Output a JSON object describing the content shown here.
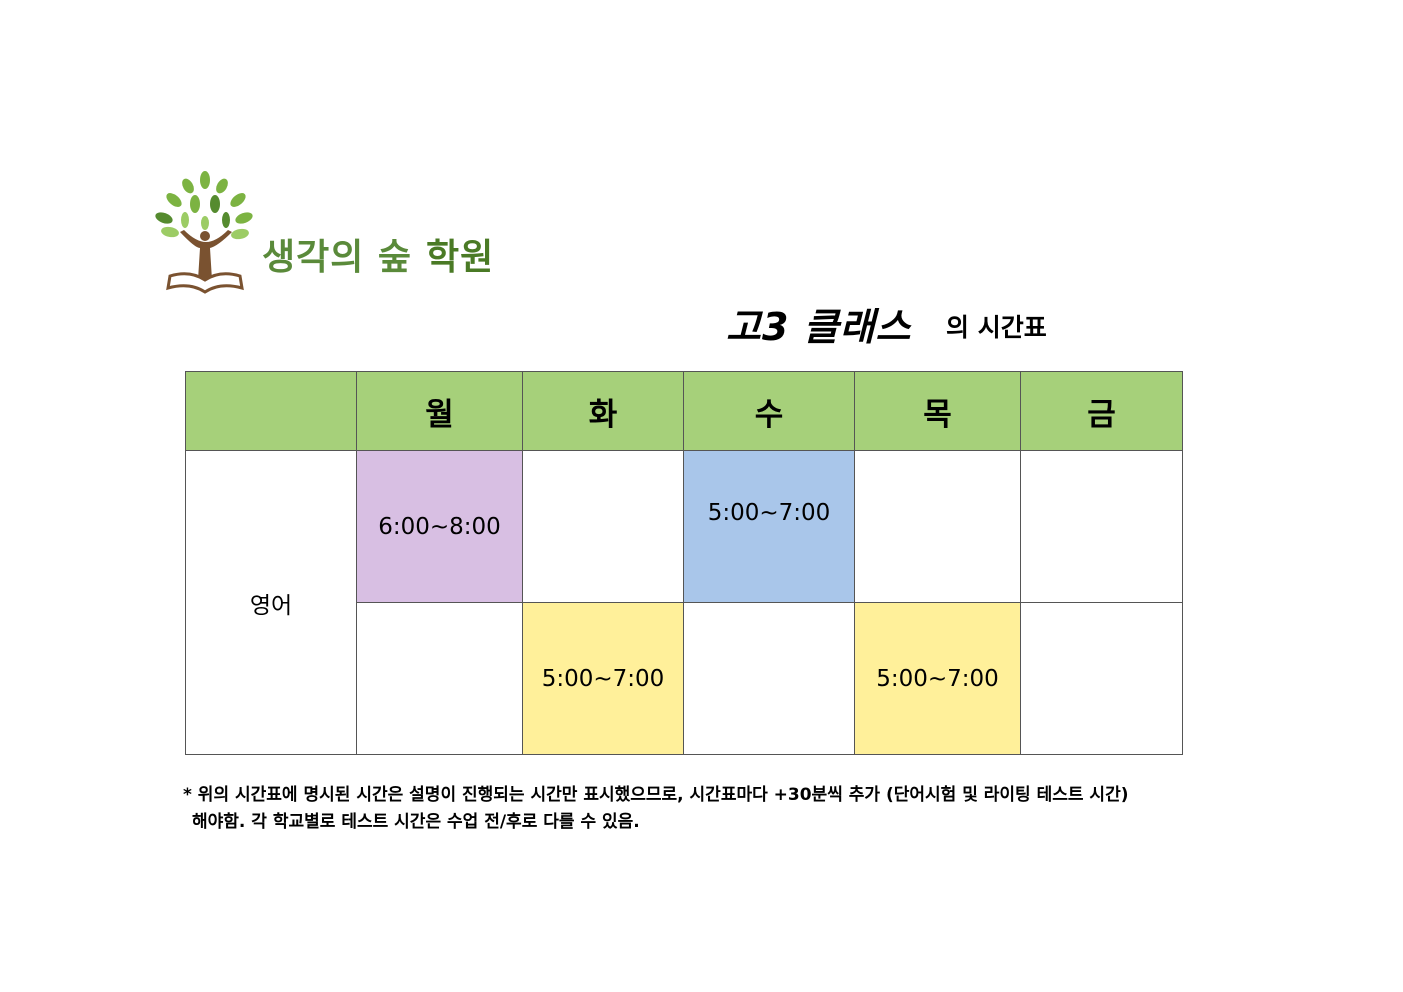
{
  "brand": {
    "name_part1": "생각의 숲",
    "name_part2": "학원"
  },
  "title": {
    "class_name": "고3 클래스",
    "suffix": "의 시간표"
  },
  "timetable": {
    "days": [
      "월",
      "화",
      "수",
      "목",
      "금"
    ],
    "subject": "영어",
    "rows": [
      [
        "6:00~8:00",
        "",
        "5:00~7:00",
        "",
        ""
      ],
      [
        "",
        "5:00~7:00",
        "",
        "5:00~7:00",
        ""
      ]
    ],
    "colors": {
      "header": "#a6d07a",
      "mon": "#d8bfe3",
      "wed": "#a9c6ea",
      "tue_thu": "#fff09a"
    }
  },
  "note": {
    "line1": "* 위의 시간표에 명시된 시간은 설명이 진행되는 시간만 표시했으므로, 시간표마다  +30분씩 추가 (단어시험 및 라이팅 테스트 시간)",
    "line2": "해야함. 각 학교별로 테스트 시간은 수업 전/후로 다를 수 있음."
  }
}
